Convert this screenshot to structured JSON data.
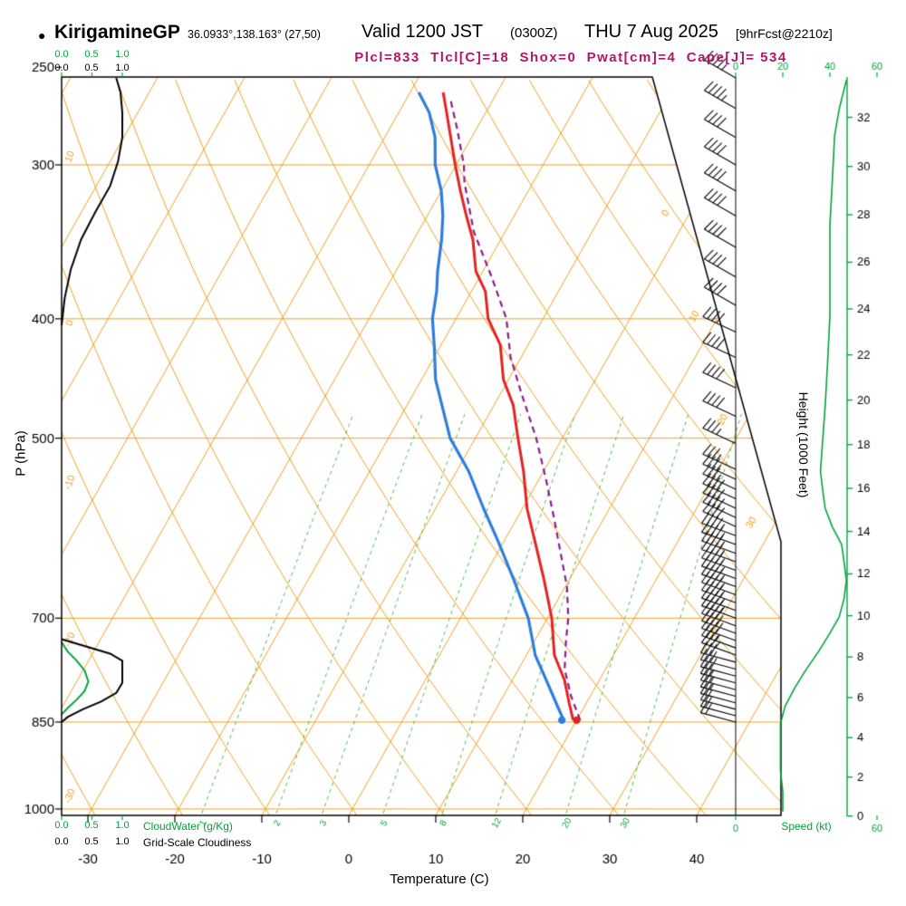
{
  "header": {
    "bullet": "●",
    "station": "KirigamineGP",
    "coords": "36.0933°,138.163° (27,50)",
    "valid_main": "Valid 1200 JST",
    "valid_z": "(0300Z)",
    "valid_date": "THU 7 Aug 2025",
    "fcst_tag": "[9hrFcst@2210z]",
    "stats": "Plcl=833  Tlcl[C]=18  Shox=0  Pwat[cm]=4  Cape[J]= 534"
  },
  "axes": {
    "pressure_label": "P (hPa)",
    "pressure_ticks": [
      250,
      300,
      400,
      500,
      700,
      850,
      1000
    ],
    "temp_label": "Temperature (C)",
    "temp_ticks": [
      -30,
      -20,
      -10,
      0,
      10,
      20,
      30,
      40
    ],
    "height_label": "Height (1000 Feet)",
    "height_ticks": [
      0,
      2,
      4,
      6,
      8,
      10,
      12,
      14,
      16,
      18,
      20,
      22,
      24,
      26,
      28,
      30,
      32
    ],
    "speed_label": "Speed (kt)",
    "speed_ticks": [
      0,
      20,
      40,
      60
    ],
    "cloudwater_label": "CloudWater (g/Kg)",
    "cloudiness_label": "Grid-Scale Cloudiness",
    "cloud_scale_ticks": [
      "0.0",
      "0.5",
      "1.0"
    ]
  },
  "grid": {
    "isotherm_step_C": 10,
    "isotherm_labels": [
      0,
      10,
      20,
      30
    ],
    "dry_adiabat_labels": [
      10,
      0,
      -10,
      -20,
      -30
    ],
    "mixing_ratio_gkg": [
      1,
      2,
      3,
      5,
      8,
      12,
      20,
      30
    ]
  },
  "chart_data": {
    "type": "line",
    "subtype": "skew-t log-p sounding",
    "title": "KirigamineGP Valid 1200 JST (0300Z) THU 7 Aug 2025",
    "pressure_hPa_range": [
      255,
      1012
    ],
    "temperature_C_range": [
      -30,
      40
    ],
    "series": {
      "temperature_C": [
        [
          847,
          19.6
        ],
        [
          820,
          18.0
        ],
        [
          786,
          16.0
        ],
        [
          750,
          13.2
        ],
        [
          700,
          10.5
        ],
        [
          650,
          7.0
        ],
        [
          608,
          3.7
        ],
        [
          570,
          0.5
        ],
        [
          532,
          -2.3
        ],
        [
          500,
          -5.1
        ],
        [
          470,
          -7.8
        ],
        [
          448,
          -10.6
        ],
        [
          420,
          -13.2
        ],
        [
          400,
          -16.3
        ],
        [
          380,
          -18.4
        ],
        [
          366,
          -20.8
        ],
        [
          345,
          -23.2
        ],
        [
          330,
          -25.5
        ],
        [
          315,
          -27.8
        ],
        [
          300,
          -30.1
        ],
        [
          285,
          -32.4
        ],
        [
          272,
          -34.5
        ],
        [
          262,
          -36.2
        ]
      ],
      "dewpoint_C": [
        [
          847,
          18.5
        ],
        [
          820,
          16.5
        ],
        [
          786,
          13.9
        ],
        [
          750,
          11.0
        ],
        [
          700,
          7.8
        ],
        [
          650,
          3.5
        ],
        [
          608,
          -0.5
        ],
        [
          570,
          -4.5
        ],
        [
          532,
          -8.6
        ],
        [
          500,
          -12.9
        ],
        [
          470,
          -16.0
        ],
        [
          448,
          -18.4
        ],
        [
          420,
          -20.8
        ],
        [
          400,
          -22.7
        ],
        [
          380,
          -24.0
        ],
        [
          366,
          -25.2
        ],
        [
          345,
          -26.8
        ],
        [
          330,
          -28.2
        ],
        [
          315,
          -30.0
        ],
        [
          300,
          -32.4
        ],
        [
          285,
          -34.2
        ],
        [
          272,
          -36.5
        ],
        [
          262,
          -39.0
        ]
      ],
      "parcel_C": [
        [
          847,
          20.4
        ],
        [
          810,
          17.8
        ],
        [
          770,
          15.3
        ],
        [
          730,
          13.6
        ],
        [
          700,
          12.4
        ],
        [
          660,
          10.2
        ],
        [
          620,
          7.3
        ],
        [
          580,
          4.2
        ],
        [
          540,
          0.8
        ],
        [
          500,
          -3.0
        ],
        [
          460,
          -7.6
        ],
        [
          430,
          -11.2
        ],
        [
          400,
          -14.2
        ],
        [
          370,
          -18.6
        ],
        [
          340,
          -23.6
        ],
        [
          310,
          -27.9
        ],
        [
          300,
          -29.1
        ],
        [
          280,
          -32.3
        ],
        [
          266,
          -34.8
        ]
      ],
      "cloudiness_upper": [
        [
          255,
          0.9
        ],
        [
          262,
          0.97
        ],
        [
          272,
          1.0
        ],
        [
          285,
          1.0
        ],
        [
          298,
          0.93
        ],
        [
          312,
          0.8
        ],
        [
          328,
          0.55
        ],
        [
          345,
          0.32
        ],
        [
          365,
          0.15
        ],
        [
          385,
          0.05
        ],
        [
          405,
          0.0
        ]
      ],
      "cloudiness_lower": [
        [
          728,
          0.0
        ],
        [
          738,
          0.4
        ],
        [
          748,
          0.8
        ],
        [
          758,
          1.0
        ],
        [
          790,
          1.0
        ],
        [
          805,
          0.9
        ],
        [
          818,
          0.65
        ],
        [
          830,
          0.35
        ],
        [
          842,
          0.1
        ],
        [
          850,
          0.0
        ]
      ],
      "cloudwater_gkg": [
        [
          732,
          0.0
        ],
        [
          745,
          0.1
        ],
        [
          758,
          0.25
        ],
        [
          772,
          0.38
        ],
        [
          788,
          0.44
        ],
        [
          802,
          0.38
        ],
        [
          815,
          0.25
        ],
        [
          828,
          0.1
        ],
        [
          838,
          0.0
        ]
      ],
      "wind_speed_kt": [
        [
          256,
          47
        ],
        [
          270,
          44
        ],
        [
          284,
          42
        ],
        [
          310,
          41
        ],
        [
          336,
          40
        ],
        [
          365,
          40
        ],
        [
          398,
          40
        ],
        [
          435,
          39
        ],
        [
          471,
          38
        ],
        [
          500,
          37
        ],
        [
          532,
          36
        ],
        [
          552,
          37
        ],
        [
          570,
          38
        ],
        [
          590,
          41
        ],
        [
          610,
          45
        ],
        [
          630,
          46
        ],
        [
          652,
          47
        ],
        [
          675,
          46
        ],
        [
          698,
          44
        ],
        [
          720,
          40
        ],
        [
          746,
          35
        ],
        [
          770,
          30
        ],
        [
          798,
          25
        ],
        [
          825,
          21
        ],
        [
          853,
          19
        ],
        [
          890,
          19
        ],
        [
          930,
          19
        ],
        [
          968,
          20
        ],
        [
          1005,
          20
        ]
      ],
      "wind_barbs": [
        [
          255,
          47,
          300
        ],
        [
          270,
          44,
          300
        ],
        [
          285,
          42,
          300
        ],
        [
          300,
          41,
          300
        ],
        [
          315,
          41,
          300
        ],
        [
          330,
          40,
          300
        ],
        [
          350,
          40,
          300
        ],
        [
          370,
          40,
          300
        ],
        [
          390,
          40,
          300
        ],
        [
          410,
          39,
          295
        ],
        [
          430,
          39,
          295
        ],
        [
          455,
          38,
          295
        ],
        [
          480,
          38,
          295
        ],
        [
          505,
          37,
          295
        ],
        [
          530,
          36,
          295
        ],
        [
          540,
          36,
          295
        ],
        [
          550,
          37,
          295
        ],
        [
          560,
          38,
          295
        ],
        [
          570,
          38,
          295
        ],
        [
          580,
          40,
          295
        ],
        [
          590,
          41,
          295
        ],
        [
          600,
          43,
          290
        ],
        [
          610,
          45,
          290
        ],
        [
          620,
          46,
          290
        ],
        [
          630,
          46,
          290
        ],
        [
          640,
          47,
          290
        ],
        [
          650,
          47,
          290
        ],
        [
          660,
          47,
          290
        ],
        [
          670,
          46,
          290
        ],
        [
          680,
          45,
          290
        ],
        [
          690,
          44,
          290
        ],
        [
          700,
          43,
          290
        ],
        [
          710,
          41,
          290
        ],
        [
          720,
          40,
          290
        ],
        [
          730,
          38,
          290
        ],
        [
          740,
          36,
          290
        ],
        [
          750,
          34,
          290
        ],
        [
          760,
          32,
          285
        ],
        [
          770,
          30,
          285
        ],
        [
          780,
          28,
          285
        ],
        [
          790,
          26,
          285
        ],
        [
          800,
          25,
          285
        ],
        [
          810,
          23,
          285
        ],
        [
          820,
          22,
          285
        ],
        [
          830,
          20,
          285
        ],
        [
          840,
          19,
          285
        ],
        [
          850,
          19,
          285
        ]
      ]
    },
    "surface_dots": {
      "temperature": [
        847,
        20.0
      ],
      "dewpoint": [
        847,
        18.3
      ]
    }
  },
  "colors": {
    "grid_orange": "#eda020",
    "green": "#00a33a",
    "mixing_green": "#4cbb4c",
    "temp_red": "#e32222",
    "dewpoint_blue": "#2e7ddd",
    "parcel_purple": "#8a1c8a",
    "stats_magenta": "#b3156b",
    "black": "#000000"
  }
}
